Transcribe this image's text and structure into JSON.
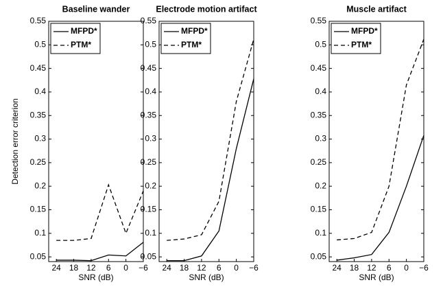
{
  "chart_data": [
    {
      "type": "line",
      "title": "Baseline wander",
      "xlabel": "SNR (dB)",
      "ylabel": "Detection error criterion",
      "categories": [
        "24",
        "18",
        "12",
        "6",
        "0",
        "−6"
      ],
      "ylim": [
        0.04,
        0.55
      ],
      "yticks": [
        0.05,
        0.1,
        0.15,
        0.2,
        0.25,
        0.3,
        0.35,
        0.4,
        0.45,
        0.5,
        0.55
      ],
      "legend": "upper left",
      "series": [
        {
          "name": "MFPD*",
          "color": "#000000",
          "line_style": "solid",
          "values": [
            0.043,
            0.043,
            0.042,
            0.054,
            0.052,
            0.081
          ]
        },
        {
          "name": "PTM*",
          "color": "#000000",
          "line_style": "dashed",
          "values": [
            0.085,
            0.085,
            0.089,
            0.203,
            0.1,
            0.19
          ]
        }
      ]
    },
    {
      "type": "line",
      "title": "Electrode motion artifact",
      "xlabel": "SNR (dB)",
      "categories": [
        "24",
        "18",
        "12",
        "6",
        "0",
        "−6"
      ],
      "ylim": [
        0.04,
        0.55
      ],
      "yticks": [
        0.05,
        0.1,
        0.15,
        0.2,
        0.25,
        0.3,
        0.35,
        0.4,
        0.45,
        0.5,
        0.55
      ],
      "legend": "upper left",
      "series": [
        {
          "name": "MFPD*",
          "color": "#000000",
          "line_style": "solid",
          "values": [
            0.042,
            0.042,
            0.052,
            0.105,
            0.28,
            0.428
          ]
        },
        {
          "name": "PTM*",
          "color": "#000000",
          "line_style": "dashed",
          "values": [
            0.085,
            0.088,
            0.097,
            0.168,
            0.38,
            0.512
          ]
        }
      ]
    },
    {
      "type": "line",
      "title": "Muscle artifact",
      "xlabel": "SNR (dB)",
      "categories": [
        "24",
        "18",
        "12",
        "6",
        "0",
        "−6"
      ],
      "ylim": [
        0.04,
        0.55
      ],
      "yticks": [
        0.05,
        0.1,
        0.15,
        0.2,
        0.25,
        0.3,
        0.35,
        0.4,
        0.45,
        0.5,
        0.55
      ],
      "legend": "upper left",
      "series": [
        {
          "name": "MFPD*",
          "color": "#000000",
          "line_style": "solid",
          "values": [
            0.043,
            0.048,
            0.055,
            0.102,
            0.2,
            0.308
          ]
        },
        {
          "name": "PTM*",
          "color": "#000000",
          "line_style": "dashed",
          "values": [
            0.086,
            0.089,
            0.102,
            0.2,
            0.415,
            0.512
          ]
        }
      ]
    }
  ]
}
